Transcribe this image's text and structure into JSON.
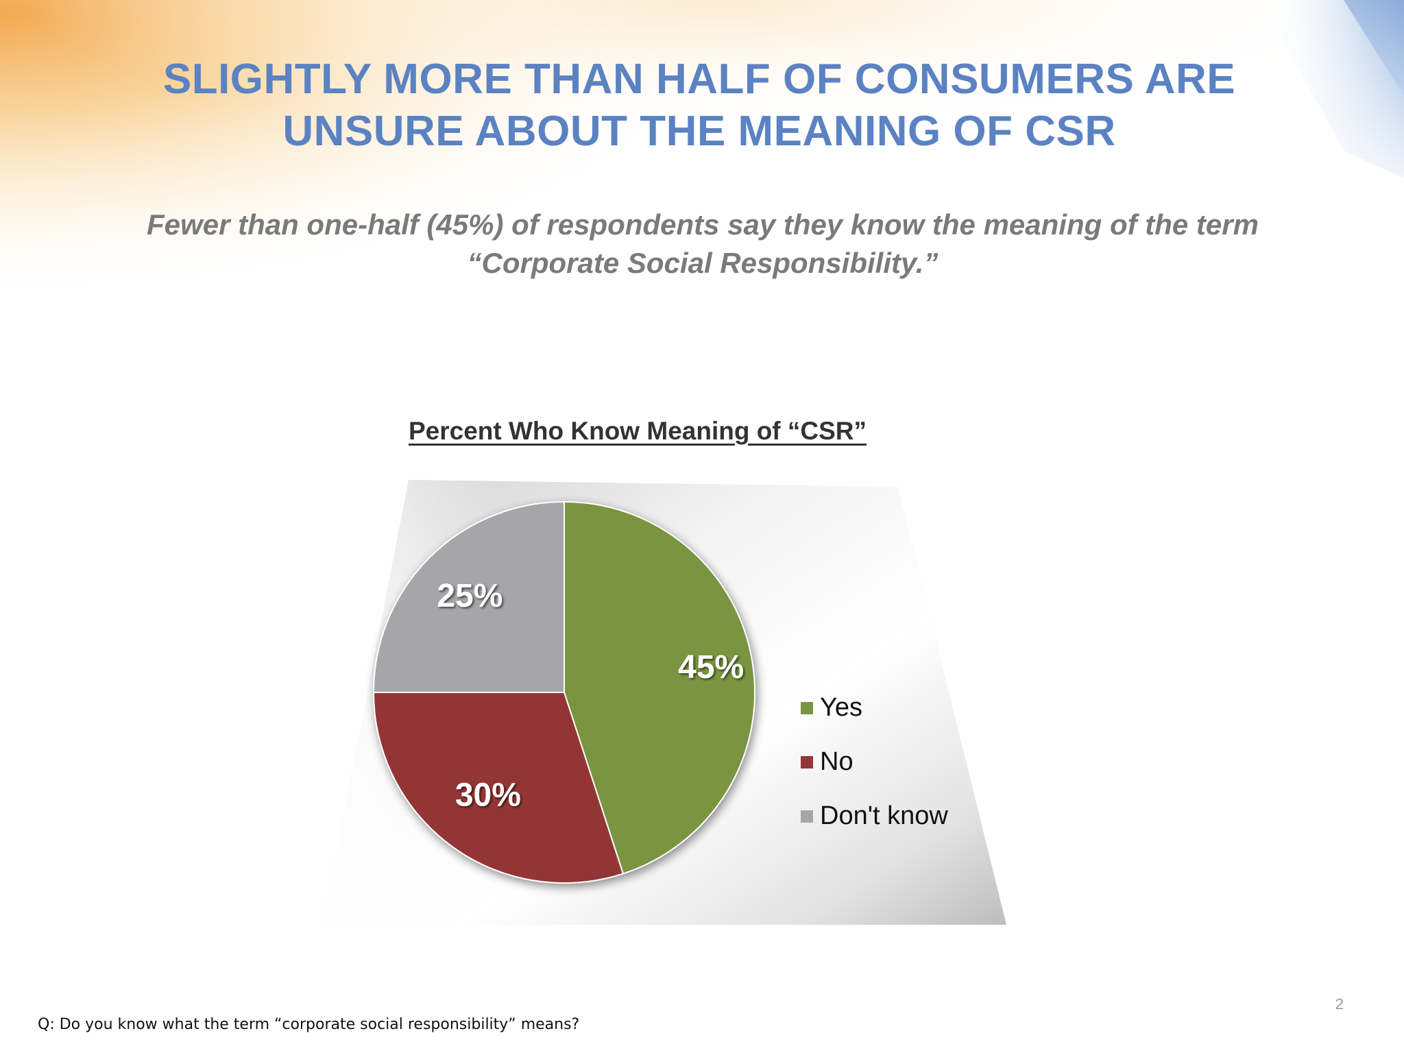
{
  "slide": {
    "title": "SLIGHTLY MORE THAN HALF OF CONSUMERS ARE UNSURE ABOUT THE MEANING OF CSR",
    "subtitle": "Fewer than one-half (45%) of respondents say they know the meaning of the term “Corporate Social Responsibility.”",
    "footnote": "Q: Do you know what the term “corporate social responsibility” means?",
    "page_number": "2"
  },
  "chart_data": {
    "type": "pie",
    "title": "Percent Who Know Meaning of “CSR”",
    "categories": [
      "Yes",
      "No",
      "Don't know"
    ],
    "values": [
      45,
      30,
      25
    ],
    "labels": [
      "45%",
      "30%",
      "25%"
    ],
    "colors": [
      "#79953f",
      "#943535",
      "#a6a5a8"
    ],
    "legend": "right",
    "start": "12 o'clock",
    "direction": "clockwise"
  }
}
